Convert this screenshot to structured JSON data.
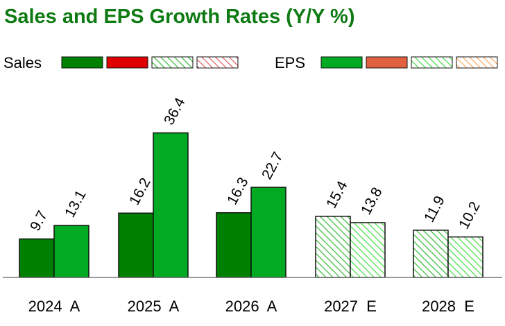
{
  "chart_data": {
    "type": "bar",
    "title": "Sales and EPS Growth Rates (Y/Y %)",
    "categories": [
      "2024  A",
      "2025  A",
      "2026  A",
      "2027  E",
      "2028  E"
    ],
    "estimated": [
      false,
      false,
      false,
      true,
      true
    ],
    "series": [
      {
        "name": "Sales",
        "values": [
          9.7,
          16.2,
          16.3,
          15.4,
          11.9
        ]
      },
      {
        "name": "EPS",
        "values": [
          13.1,
          36.4,
          22.7,
          13.8,
          10.2
        ]
      }
    ],
    "legend": [
      {
        "series": "Sales",
        "swatches": [
          "actual-positive",
          "actual-negative",
          "estimate-positive",
          "estimate-negative"
        ]
      },
      {
        "series": "EPS",
        "swatches": [
          "actual-positive",
          "actual-negative",
          "estimate-positive",
          "estimate-negative"
        ]
      }
    ],
    "ylim": [
      0,
      40
    ],
    "grid": false,
    "legend_placement": "top",
    "colors": {
      "sales_actual": "#008000",
      "sales_negative": "#e00000",
      "eps_actual": "#00aa22",
      "eps_negative": "#e06040",
      "sales_estimate_hatch": "#33bb33",
      "sales_negative_hatch": "#dd4444",
      "eps_estimate_hatch": "#44dd44",
      "eps_negative_hatch": "#ff9944",
      "title": "#0d7a12"
    }
  }
}
